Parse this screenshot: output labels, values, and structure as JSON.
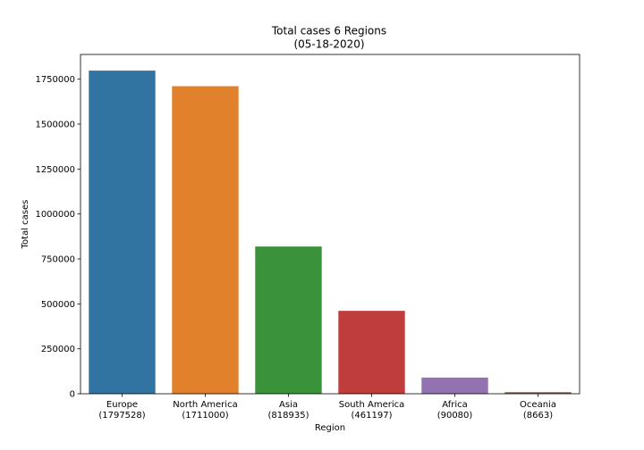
{
  "chart_data": {
    "type": "bar",
    "title": "Total cases 6 Regions",
    "subtitle": "(05-18-2020)",
    "xlabel": "Region",
    "ylabel": "Total cases",
    "categories": [
      "Europe",
      "North America",
      "Asia",
      "South America",
      "Africa",
      "Oceania"
    ],
    "category_values_labels": [
      "(1797528)",
      "(1711000)",
      "(818935)",
      "(461197)",
      "(90080)",
      "(8663)"
    ],
    "values": [
      1797528,
      1711000,
      818935,
      461197,
      90080,
      8663
    ],
    "colors": [
      "#3274a1",
      "#e1812c",
      "#3a923a",
      "#c03d3e",
      "#9372b2",
      "#845b53"
    ],
    "yticks": [
      0,
      250000,
      500000,
      750000,
      1000000,
      1250000,
      1500000,
      1750000
    ],
    "ylim": [
      0,
      1887404
    ],
    "grid": false,
    "legend": "none"
  }
}
